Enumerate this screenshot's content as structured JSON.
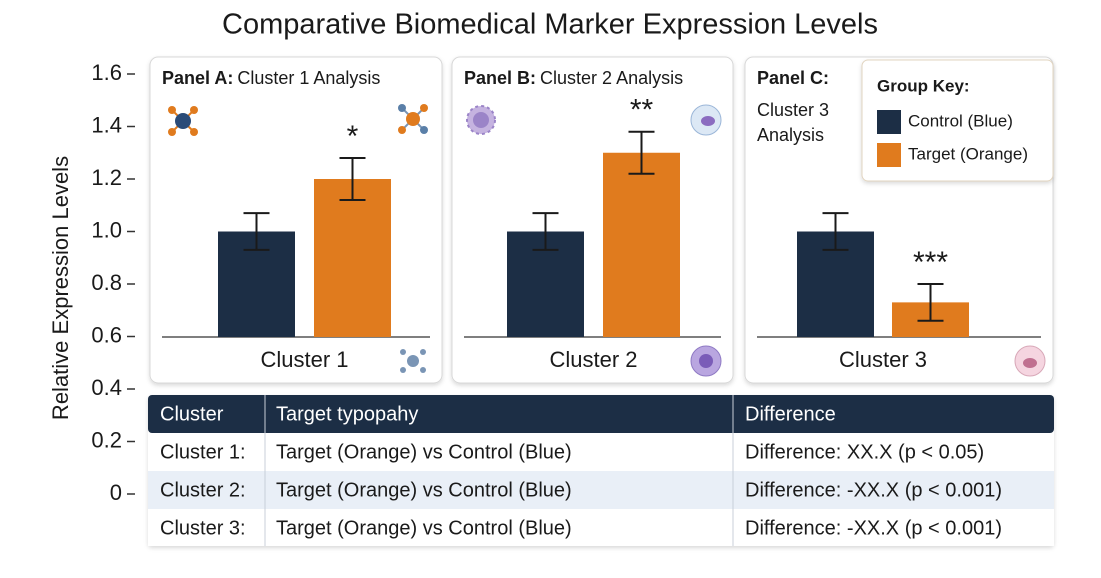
{
  "chart_data": {
    "type": "bar",
    "title": "Comparative Biomedical Marker Expression Levels",
    "y_label": "Relative Expression Levels",
    "ylim": [
      0,
      1.6
    ],
    "yticks": [
      0,
      0.2,
      0.4,
      0.6,
      0.8,
      {
        "value": 1,
        "label": "1.0"
      },
      1.2,
      1.4,
      1.6
    ],
    "categories": [
      "Cluster 1",
      "Cluster 2",
      "Cluster 3"
    ],
    "panels": [
      {
        "label": "Panel A:",
        "title": "Cluster 1 Analysis"
      },
      {
        "label": "Panel B:",
        "title": "Cluster 2 Analysis"
      },
      {
        "label": "Panel C:",
        "title": "Cluster 3 Analysis"
      }
    ],
    "legend_title": "Group Key:",
    "series": [
      {
        "name": "Control (Blue)",
        "color": "#1c2e45",
        "values": [
          1.0,
          1.0,
          1.0
        ],
        "errors": [
          0.07,
          0.07,
          0.07
        ]
      },
      {
        "name": "Target (Orange)",
        "color": "#e07b1e",
        "values": [
          1.2,
          1.3,
          0.73
        ],
        "errors": [
          0.08,
          0.08,
          0.07
        ]
      }
    ],
    "annotations": [
      "*",
      "**",
      "***"
    ]
  },
  "table": {
    "header": [
      "Cluster",
      "Target typopahy",
      "Difference"
    ],
    "rows": [
      [
        "Cluster 1:",
        "Target (Orange) vs Control (Blue)",
        "Difference:  XX.X (p < 0.05)"
      ],
      [
        "Cluster 2:",
        "Target (Orange) vs Control (Blue)",
        "Difference: -XX.X (p < 0.001)"
      ],
      [
        "Cluster 3:",
        "Target (Orange) vs Control (Blue)",
        "Difference: -XX.X (p < 0.001)"
      ]
    ]
  }
}
